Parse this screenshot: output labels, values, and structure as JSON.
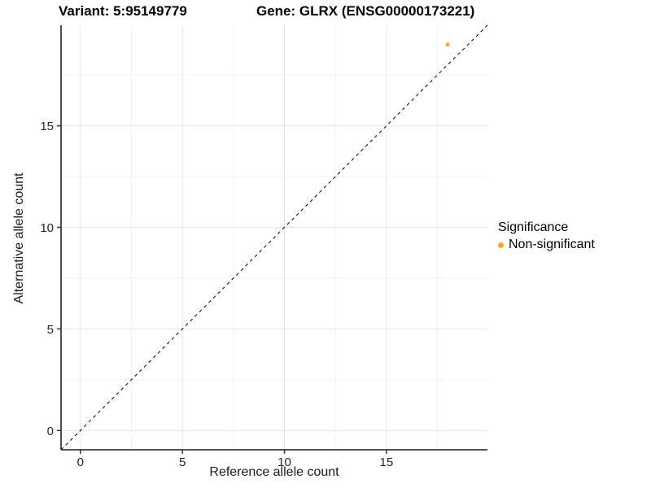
{
  "header": {
    "variant_title": "Variant: 5:95149779",
    "gene_title": "Gene: GLRX (ENSG00000173221)"
  },
  "legend": {
    "title": "Significance",
    "items": [
      {
        "label": "Non-significant",
        "color": "#FFA433"
      }
    ]
  },
  "colors": {
    "point": "#FFA433",
    "grid_major": "#E6E6E6",
    "grid_minor": "#F2F2F2",
    "axis_line": "#3C3C3C",
    "tick_mark": "#333333",
    "tick_text": "#262626",
    "identity_line": "#000000",
    "background": "#FFFFFF"
  },
  "chart_data": {
    "type": "scatter",
    "title": "Variant: 5:95149779   Gene: GLRX (ENSG00000173221)",
    "xlabel": "Reference allele count",
    "ylabel": "Alternative allele count",
    "xlim": [
      -0.95,
      19.95
    ],
    "ylim": [
      -0.95,
      19.95
    ],
    "x_ticks": [
      0,
      5,
      10,
      15
    ],
    "y_ticks": [
      0,
      5,
      10,
      15
    ],
    "x_minor_ticks": [
      2.5,
      7.5,
      12.5,
      17.5
    ],
    "y_minor_ticks": [
      2.5,
      7.5,
      12.5,
      17.5
    ],
    "grid": true,
    "legend_position": "right",
    "legend_title": "Significance",
    "identity_line": {
      "style": "dashed",
      "from": [
        -0.95,
        -0.95
      ],
      "to": [
        19.95,
        19.95
      ]
    },
    "series": [
      {
        "name": "Non-significant",
        "color": "#FFA433",
        "point_radius": 2.5,
        "points": [
          {
            "x": 18,
            "y": 19
          }
        ]
      }
    ]
  }
}
